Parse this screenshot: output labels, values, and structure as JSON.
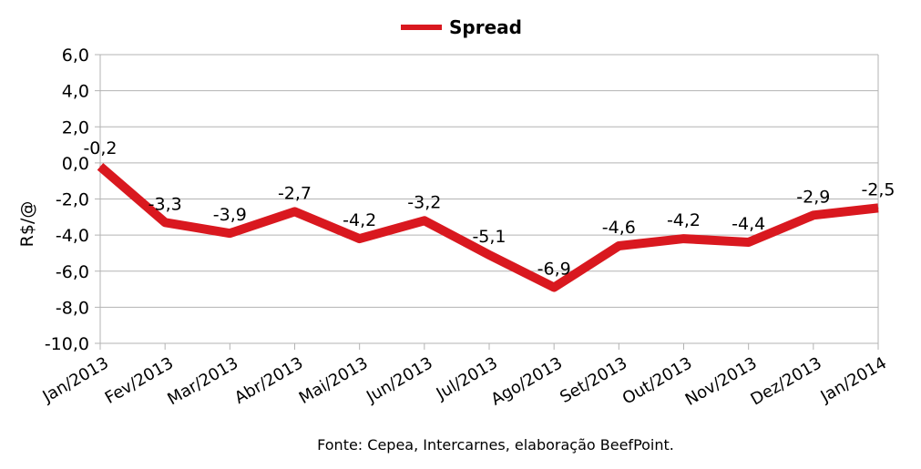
{
  "chart_data": {
    "type": "line",
    "title": "",
    "xlabel": "",
    "ylabel": "R$/@",
    "categories": [
      "Jan/2013",
      "Fev/2013",
      "Mar/2013",
      "Abr/2013",
      "Mai/2013",
      "Jun/2013",
      "Jul/2013",
      "Ago/2013",
      "Set/2013",
      "Out/2013",
      "Nov/2013",
      "Dez/2013",
      "Jan/2014"
    ],
    "series": [
      {
        "name": "Spread",
        "color": "#d9181f",
        "values": [
          -0.2,
          -3.3,
          -3.9,
          -2.7,
          -4.2,
          -3.2,
          -5.1,
          -6.9,
          -4.6,
          -4.2,
          -4.4,
          -2.9,
          -2.5
        ],
        "data_labels": [
          "-0,2",
          "-3,3",
          "-3,9",
          "-2,7",
          "-4,2",
          "-3,2",
          "-5,1",
          "-6,9",
          "-4,6",
          "-4,2",
          "-4,4",
          "-2,9",
          "-2,5"
        ]
      }
    ],
    "ylim": [
      -10,
      6
    ],
    "yticks": [
      6,
      4,
      2,
      0,
      -2,
      -4,
      -6,
      -8,
      -10
    ],
    "ytick_labels": [
      "6,0",
      "4,0",
      "2,0",
      "0,0",
      "-2,0",
      "-4,0",
      "-6,0",
      "-8,0",
      "-10,0"
    ],
    "grid": true,
    "legend_position": "top-center",
    "source": "Fonte: Cepea, Intercarnes, elaboração BeefPoint."
  }
}
